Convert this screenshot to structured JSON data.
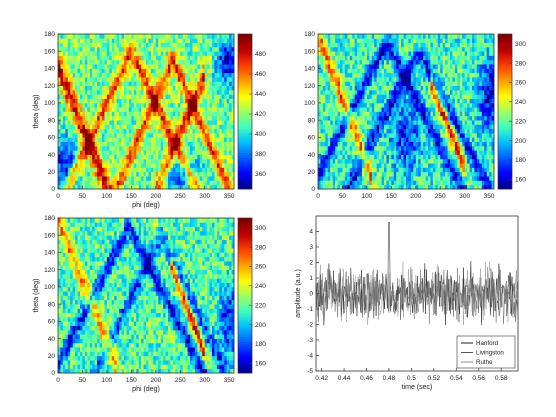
{
  "figure": {
    "background": "#ffffff",
    "colormap": [
      "#00008f",
      "#0000ff",
      "#0060ff",
      "#00c0ff",
      "#40ffbf",
      "#a0ff60",
      "#ffff00",
      "#ff9f00",
      "#ff4000",
      "#bf0000",
      "#800000"
    ]
  },
  "chart_data": [
    {
      "type": "heatmap",
      "panel": "top-left",
      "xlabel": "phi (deg)",
      "ylabel": "theta (deg)",
      "xlim": [
        0,
        360
      ],
      "ylim": [
        0,
        180
      ],
      "xticks": [
        "0",
        "50",
        "100",
        "150",
        "200",
        "250",
        "300",
        "350"
      ],
      "yticks": [
        "0",
        "20",
        "40",
        "60",
        "80",
        "100",
        "120",
        "140",
        "160",
        "180"
      ],
      "colorbar": {
        "range": [
          345,
          500
        ],
        "ticks": [
          "360",
          "380",
          "400",
          "420",
          "440",
          "460",
          "480"
        ]
      }
    },
    {
      "type": "heatmap",
      "panel": "top-right",
      "xlabel": "",
      "ylabel": "",
      "xlim": [
        0,
        360
      ],
      "ylim": [
        0,
        180
      ],
      "xticks": [
        "0",
        "50",
        "100",
        "150",
        "200",
        "250",
        "300",
        "350"
      ],
      "yticks": [
        "0",
        "20",
        "40",
        "60",
        "80",
        "100",
        "120",
        "140",
        "160",
        "180"
      ],
      "colorbar": {
        "range": [
          150,
          310
        ],
        "ticks": [
          "160",
          "180",
          "200",
          "220",
          "240",
          "260",
          "280",
          "300"
        ]
      }
    },
    {
      "type": "heatmap",
      "panel": "bottom-left",
      "xlabel": "phi (deg)",
      "ylabel": "theta (deg)",
      "xlim": [
        0,
        360
      ],
      "ylim": [
        0,
        180
      ],
      "xticks": [
        "0",
        "50",
        "100",
        "150",
        "200",
        "250",
        "300",
        "350"
      ],
      "yticks": [
        "0",
        "20",
        "40",
        "60",
        "80",
        "100",
        "120",
        "140",
        "160",
        "180"
      ],
      "colorbar": {
        "range": [
          150,
          310
        ],
        "ticks": [
          "160",
          "180",
          "200",
          "220",
          "240",
          "260",
          "280",
          "300"
        ]
      }
    },
    {
      "type": "line",
      "panel": "bottom-right",
      "xlabel": "time (sec)",
      "ylabel": "amplitude (a.u.)",
      "xlim": [
        0.415,
        0.595
      ],
      "ylim": [
        -5,
        5
      ],
      "xticks": [
        0.42,
        0.44,
        0.46,
        0.48,
        0.5,
        0.52,
        0.54,
        0.56,
        0.58
      ],
      "xtick_labels": [
        "0.42",
        "0.44",
        "0.46",
        "0.48",
        "0.5",
        "0.52",
        "0.54",
        "0.56",
        "0.58"
      ],
      "yticks": [
        -5,
        -4,
        -3,
        -2,
        -1,
        0,
        1,
        2,
        3,
        4
      ],
      "ytick_labels": [
        "-5",
        "-4",
        "-3",
        "-2",
        "-1",
        "0",
        "1",
        "2",
        "3",
        "4"
      ],
      "series": [
        {
          "name": "Hanford",
          "color": "#222222"
        },
        {
          "name": "Livingston",
          "color": "#555555"
        },
        {
          "name": "Ruthe",
          "color": "#888888"
        }
      ],
      "legend": "bottom-right",
      "peak": {
        "x": 0.48,
        "y": 4.6
      }
    }
  ]
}
